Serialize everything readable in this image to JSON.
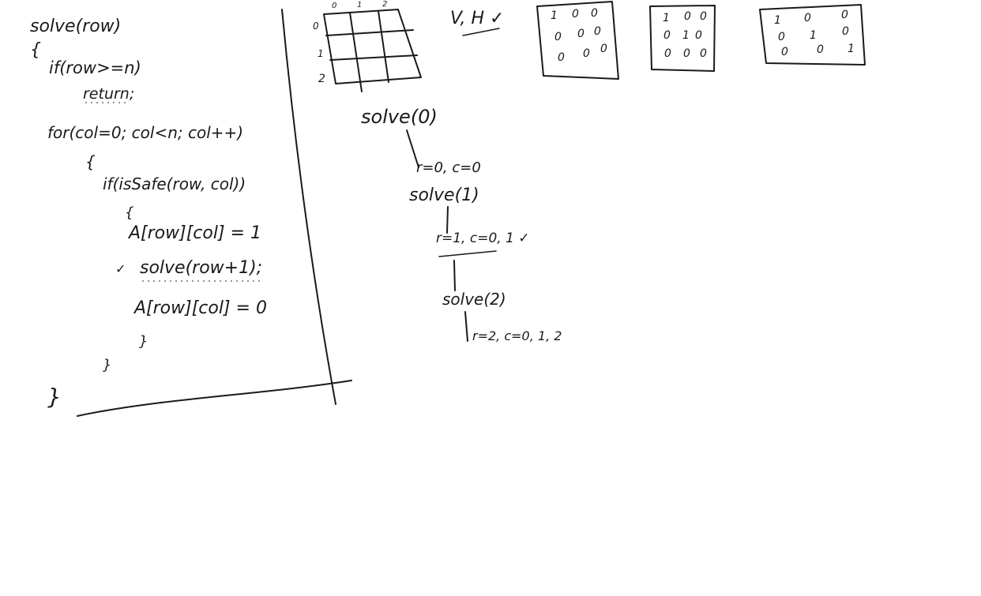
{
  "code": {
    "line1": "solve(row)",
    "open_brace": "{",
    "line2": "if(row>=n)",
    "line3": "return;",
    "line4": "for(col=0; col<n; col++)",
    "line5_brace": "{",
    "line6": "if(isSafe(row, col))",
    "line7_brace": "{",
    "line8": "A[row][col] = 1",
    "line9_mark": "✓",
    "line9": "solve(row+1);",
    "line10": "A[row][col] = 0",
    "line11_brace": "}",
    "line12_brace": "}",
    "close_brace": "}"
  },
  "grid": {
    "col_labels": [
      "0",
      "1",
      "2"
    ],
    "row_labels": [
      "0",
      "1",
      "2"
    ]
  },
  "checks": "V, H ✓",
  "boards": [
    {
      "rows": [
        [
          "1",
          "0",
          "0"
        ],
        [
          "0",
          "0",
          "0"
        ],
        [
          "0",
          "0",
          "0"
        ]
      ]
    },
    {
      "rows": [
        [
          "1",
          "0",
          "0"
        ],
        [
          "0",
          "1",
          "0"
        ],
        [
          "0",
          "0",
          "0"
        ]
      ]
    },
    {
      "rows": [
        [
          "1",
          "0",
          "0"
        ],
        [
          "0",
          "1",
          "0"
        ],
        [
          "0",
          "0",
          "1"
        ]
      ]
    }
  ],
  "trace": {
    "call0": "solve(0)",
    "step0": "r=0, c=0",
    "call1": "solve(1)",
    "step1": "r=1, c=0, 1 ✓",
    "call2": "solve(2)",
    "step2": "r=2, c=0, 1, 2"
  },
  "colors": {
    "ink": "#1a1a1a",
    "paper": "#ffffff"
  }
}
